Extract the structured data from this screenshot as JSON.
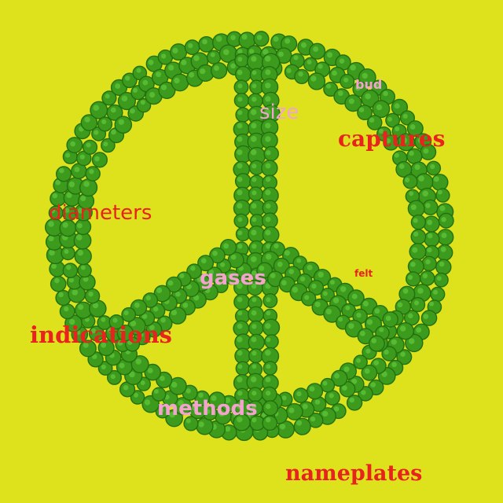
{
  "image": {
    "background_color": "#dde21d",
    "subject": "peace-sign made of green peas",
    "pea_color": "#3c9a1c",
    "pea_highlight": "#5cc23a",
    "pea_shadow": "#22700f"
  },
  "labels": {
    "bud": "bud",
    "size": "size",
    "captures": "captures",
    "diameters": "diameters",
    "gases": "gases",
    "felt": "felt",
    "indications": "indications",
    "methods": "methods",
    "nameplates": "nameplates"
  },
  "colors": {
    "red": "#e8221c",
    "pink": "#f4a3cf"
  }
}
